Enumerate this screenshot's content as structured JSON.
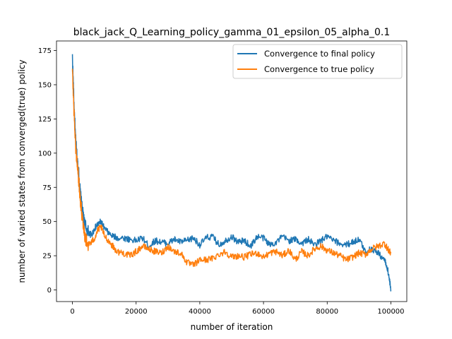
{
  "chart_data": {
    "type": "line",
    "title": "black_jack_Q_Learning_policy_gamma_01_epsilon_05_alpha_0.1",
    "xlabel": "number of iteration",
    "ylabel": "number of varied states from converged(true) policy",
    "xlim": [
      -5000,
      105000
    ],
    "ylim": [
      -8.5,
      182
    ],
    "x_ticks": [
      0,
      20000,
      40000,
      60000,
      80000,
      100000
    ],
    "y_ticks": [
      0,
      25,
      50,
      75,
      100,
      125,
      150,
      175
    ],
    "grid": false,
    "legend_position": "upper-right",
    "series": [
      {
        "name": "Convergence to final policy",
        "color": "#1f77b4",
        "x": [
          0,
          500,
          1000,
          1500,
          2000,
          2500,
          3000,
          3500,
          4000,
          5000,
          6000,
          7000,
          8000,
          9000,
          10000,
          12000,
          14000,
          16000,
          18000,
          20000,
          22000,
          24000,
          26000,
          28000,
          30000,
          32000,
          34000,
          36000,
          38000,
          40000,
          42000,
          44000,
          46000,
          48000,
          50000,
          52000,
          54000,
          56000,
          58000,
          60000,
          62000,
          64000,
          66000,
          68000,
          70000,
          72000,
          74000,
          76000,
          78000,
          80000,
          82000,
          84000,
          86000,
          88000,
          90000,
          92000,
          94000,
          96000,
          98000,
          99000,
          99500,
          100000
        ],
        "values": [
          170,
          135,
          110,
          95,
          85,
          70,
          60,
          52,
          47,
          42,
          40,
          45,
          48,
          50,
          45,
          40,
          38,
          38,
          37,
          36,
          38,
          32,
          36,
          35,
          34,
          37,
          35,
          36,
          38,
          33,
          38,
          39,
          33,
          36,
          39,
          35,
          36,
          32,
          39,
          38,
          33,
          35,
          39,
          36,
          37,
          34,
          37,
          33,
          36,
          39,
          36,
          34,
          33,
          35,
          37,
          28,
          30,
          27,
          22,
          15,
          8,
          0
        ]
      },
      {
        "name": "Convergence to true policy",
        "color": "#ff7f0e",
        "x": [
          0,
          500,
          1000,
          1500,
          2000,
          2500,
          3000,
          3500,
          4000,
          5000,
          6000,
          7000,
          8000,
          9000,
          10000,
          12000,
          14000,
          16000,
          18000,
          20000,
          22000,
          24000,
          26000,
          28000,
          30000,
          32000,
          34000,
          36000,
          38000,
          40000,
          42000,
          44000,
          46000,
          48000,
          50000,
          52000,
          54000,
          56000,
          58000,
          60000,
          62000,
          64000,
          66000,
          68000,
          70000,
          72000,
          74000,
          76000,
          78000,
          80000,
          82000,
          84000,
          86000,
          88000,
          90000,
          92000,
          94000,
          96000,
          98000,
          99000,
          99500,
          100000
        ],
        "values": [
          160,
          130,
          105,
          92,
          80,
          66,
          55,
          47,
          38,
          33,
          35,
          38,
          44,
          46,
          40,
          34,
          28,
          27,
          25,
          28,
          32,
          30,
          28,
          27,
          32,
          28,
          27,
          20,
          18,
          22,
          22,
          23,
          26,
          28,
          24,
          25,
          24,
          26,
          27,
          24,
          27,
          28,
          25,
          29,
          22,
          28,
          25,
          30,
          32,
          29,
          27,
          25,
          22,
          24,
          27,
          26,
          30,
          32,
          34,
          30,
          28,
          27
        ]
      }
    ]
  }
}
